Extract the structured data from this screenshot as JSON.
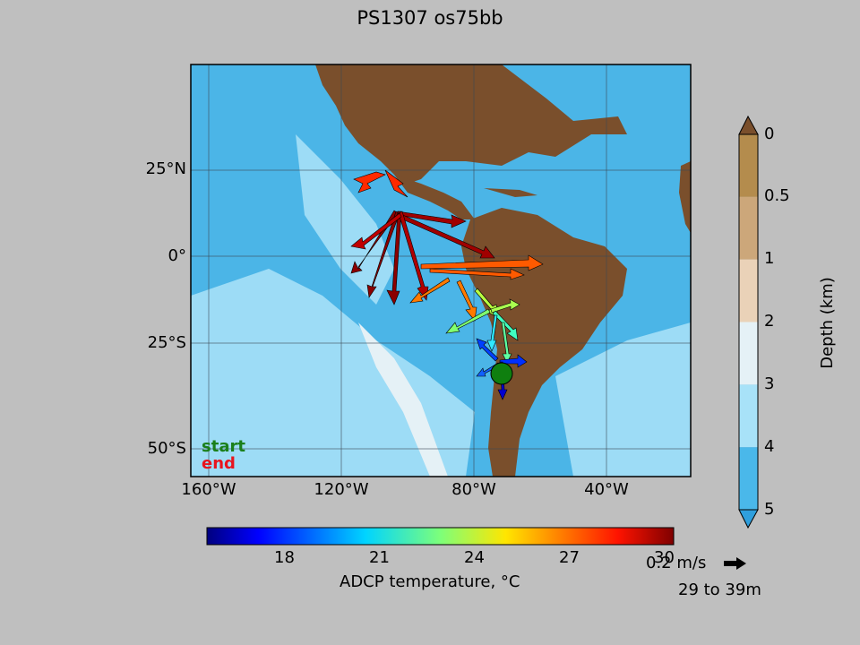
{
  "title": "PS1307 os75bb",
  "map": {
    "lat_ticks": [
      "25°N",
      "0°",
      "25°S",
      "50°S"
    ],
    "lon_ticks": [
      "160°W",
      "120°W",
      "80°W",
      "40°W"
    ],
    "legend": {
      "start": "start",
      "end": "end"
    }
  },
  "depth_colorbar": {
    "title": "Depth (km)",
    "ticks": [
      "0",
      "0.5",
      "1",
      "2",
      "3",
      "4",
      "5"
    ],
    "colors": [
      "#b48c4d",
      "#cca77a",
      "#ead2b8",
      "#e5f1f6",
      "#a8e2f8",
      "#4ab8ea",
      "#2f9fdd"
    ]
  },
  "temp_colorbar": {
    "label": "ADCP temperature, °C",
    "ticks": [
      "18",
      "21",
      "24",
      "27",
      "30"
    ]
  },
  "quiver_key": {
    "label": "0.2 m/s",
    "depth_range": "29 to 39m"
  },
  "colors": {
    "land": "#7a4f2c",
    "deep_ocean": "#4bb5e7",
    "shallow_ocean": "#9ddcf6",
    "start_marker": "#0f7f0f",
    "end_text": "#e8141e"
  }
}
